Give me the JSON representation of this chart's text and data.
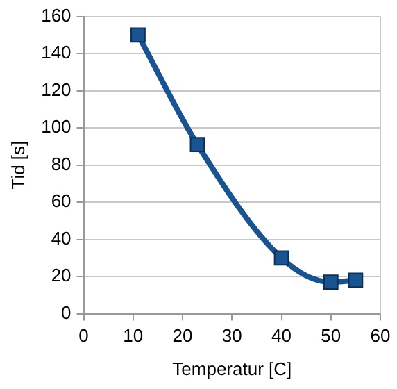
{
  "chart_data": {
    "type": "line",
    "xlabel": "Temperatur [C]",
    "ylabel": "Tid [s]",
    "x": [
      11,
      23,
      40,
      50,
      55
    ],
    "series": [
      {
        "color": "#1a5490",
        "values": [
          150,
          91,
          30,
          17,
          18
        ]
      }
    ],
    "xlim": [
      0,
      60
    ],
    "xticks": [
      0,
      10,
      20,
      30,
      40,
      50,
      60
    ],
    "ylim": [
      0,
      160
    ],
    "yticks": [
      0,
      20,
      40,
      60,
      80,
      100,
      120,
      140,
      160
    ],
    "grid": "y",
    "legend": false,
    "marker": "square",
    "line_style": "solid"
  }
}
